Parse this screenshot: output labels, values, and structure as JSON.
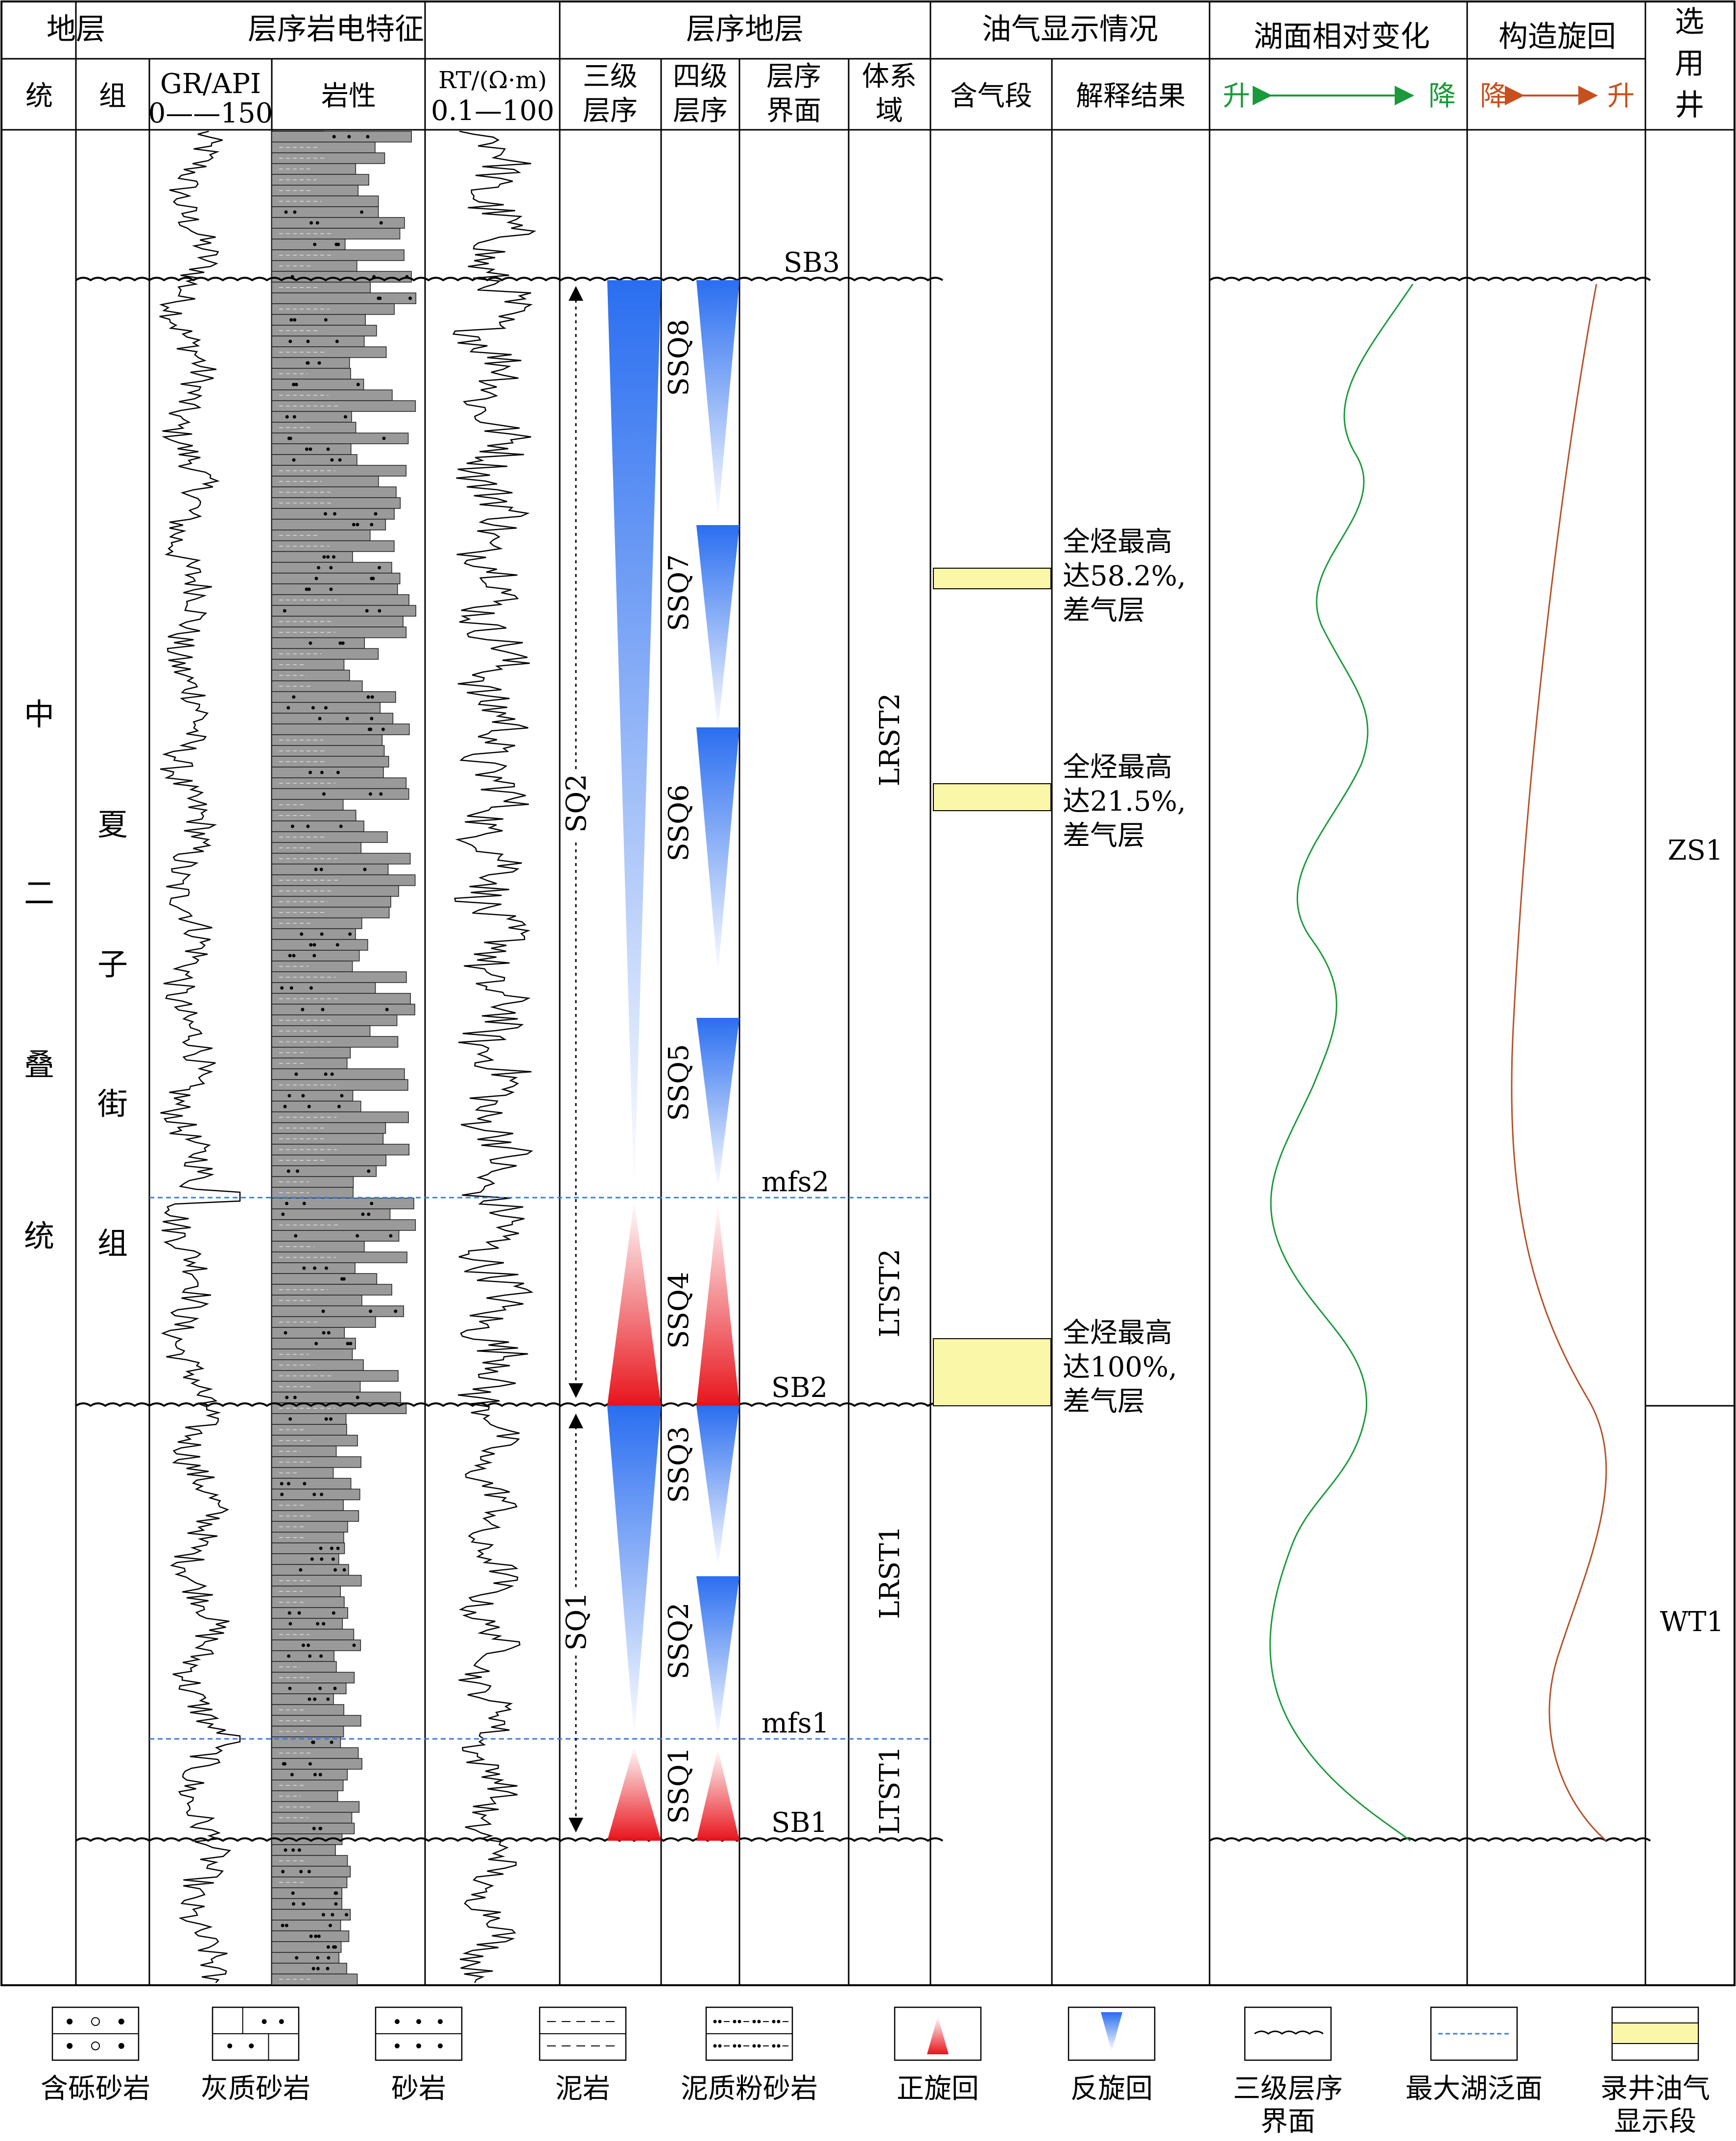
{
  "header": {
    "stratum": "地层",
    "log_features": "层序岩电特征",
    "sequence_strat": "层序地层",
    "oil_gas": "油气显示情况",
    "lake_level": "湖面相对变化",
    "tectonic": "构造旋回",
    "well_col_line1": "选",
    "well_col_line2": "用",
    "well_col_line3": "井"
  },
  "subheader": {
    "series": "统",
    "formation": "组",
    "gr_label": "GR/API",
    "gr_range": "0——150",
    "lithology": "岩性",
    "rt_label": "RT/(Ω·m)",
    "rt_range": "0.1—100",
    "third_order_1": "三级",
    "third_order_2": "层序",
    "fourth_order_1": "四级",
    "fourth_order_2": "层序",
    "boundary_1": "层序",
    "boundary_2": "界面",
    "systems_1": "体系",
    "systems_2": "域",
    "gas_interval": "含气段",
    "interpretation": "解释结果",
    "lake_up": "升",
    "lake_down": "降",
    "tect_down": "降",
    "tect_up": "升"
  },
  "strat": {
    "series_chars": [
      "中",
      "二",
      "叠",
      "统"
    ],
    "formation_chars": [
      "夏",
      "子",
      "街",
      "组"
    ]
  },
  "surfaces": {
    "sb3": "SB3",
    "sb2": "SB2",
    "sb1": "SB1",
    "mfs2": "mfs2",
    "mfs1": "mfs1"
  },
  "sequences": {
    "sq2": "SQ2",
    "sq1": "SQ1",
    "ssq": [
      "SSQ8",
      "SSQ7",
      "SSQ6",
      "SSQ5",
      "SSQ4",
      "SSQ3",
      "SSQ2",
      "SSQ1"
    ]
  },
  "systems_tracts": {
    "lrst2": "LRST2",
    "ltst2": "LTST2",
    "lrst1": "LRST1",
    "ltst1": "LTST1"
  },
  "gas_shows": [
    {
      "line1": "全烃最高",
      "line2": "达58.2%,",
      "line3": "差气层"
    },
    {
      "line1": "全烃最高",
      "line2": "达21.5%,",
      "line3": "差气层"
    },
    {
      "line1": "全烃最高",
      "line2": "达100%,",
      "line3": "差气层"
    }
  ],
  "wells": {
    "upper": "ZS1",
    "lower": "WT1"
  },
  "legend": [
    {
      "label": "含砾砂岩"
    },
    {
      "label": "灰质砂岩"
    },
    {
      "label": "砂岩"
    },
    {
      "label": "泥岩"
    },
    {
      "label": "泥质粉砂岩"
    },
    {
      "label": "正旋回"
    },
    {
      "label": "反旋回"
    },
    {
      "label": "三级层序",
      "label2": "界面"
    },
    {
      "label": "最大湖泛面"
    },
    {
      "label": "录井油气",
      "label2": "显示段"
    }
  ],
  "colors": {
    "lake_curve": "#1a9a3a",
    "tectonic_curve": "#b5502a",
    "mfs_line": "#3a7bd5",
    "gas_fill": "#fbf7a8",
    "positive_cycle": "#e8141c",
    "negative_cycle": "#2a6ef0",
    "up_green": "#1a9a3a",
    "down_orange": "#c8501e"
  }
}
